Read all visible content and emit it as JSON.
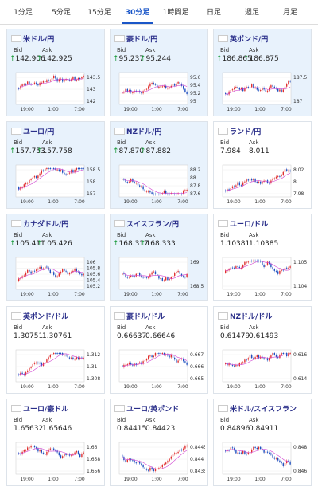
{
  "tabs": [
    "1分足",
    "5分足",
    "15分足",
    "30分足",
    "1時間足",
    "日足",
    "週足",
    "月足"
  ],
  "active_tab": 3,
  "labels": {
    "bid": "Bid",
    "ask": "Ask"
  },
  "time_labels": [
    "19:00",
    "1:00",
    "7:00"
  ],
  "cards": [
    {
      "name": "米ドル/円",
      "bid": "142.906",
      "ask": "142.925",
      "up": true,
      "highlight": true,
      "ticks": [
        "143.5",
        "143",
        "142"
      ]
    },
    {
      "name": "豪ドル/円",
      "bid": "95.237",
      "ask": "95.244",
      "up": true,
      "highlight": true,
      "ticks": [
        "95.6",
        "95.4",
        "95.2",
        "95"
      ]
    },
    {
      "name": "英ポンド/円",
      "bid": "186.865",
      "ask": "186.875",
      "up": true,
      "highlight": true,
      "ticks": [
        "187.5",
        "187"
      ]
    },
    {
      "name": "ユーロ/円",
      "bid": "157.753",
      "ask": "157.758",
      "up": true,
      "highlight": true,
      "ticks": [
        "158.5",
        "158",
        "157"
      ]
    },
    {
      "name": "NZドル/円",
      "bid": "87.870",
      "ask": "87.882",
      "up": true,
      "highlight": true,
      "ticks": [
        "88.2",
        "88",
        "87.8",
        "87.6"
      ]
    },
    {
      "name": "ランド/円",
      "bid": "7.984",
      "ask": "8.011",
      "up": false,
      "highlight": false,
      "ticks": [
        "8.02",
        "8",
        "7.98"
      ]
    },
    {
      "name": "カナダドル/円",
      "bid": "105.411",
      "ask": "105.426",
      "up": true,
      "highlight": true,
      "ticks": [
        "106",
        "105.8",
        "105.6",
        "105.4",
        "105.2"
      ]
    },
    {
      "name": "スイスフラン/円",
      "bid": "168.317",
      "ask": "168.333",
      "up": true,
      "highlight": true,
      "ticks": [
        "169",
        "168.5"
      ]
    },
    {
      "name": "ユーロ/ドル",
      "bid": "1.10381",
      "ask": "1.10385",
      "up": false,
      "highlight": false,
      "ticks": [
        "1.105",
        "1.104"
      ]
    },
    {
      "name": "英ポンド/ドル",
      "bid": "1.30751",
      "ask": "1.30761",
      "up": false,
      "highlight": false,
      "ticks": [
        "1.312",
        "1.31",
        "1.308"
      ]
    },
    {
      "name": "豪ドル/ドル",
      "bid": "0.66637",
      "ask": "0.66646",
      "up": false,
      "highlight": false,
      "ticks": [
        "0.667",
        "0.666",
        "0.665"
      ]
    },
    {
      "name": "NZドル/ドル",
      "bid": "0.61479",
      "ask": "0.61493",
      "up": false,
      "highlight": false,
      "ticks": [
        "0.616",
        "0.614"
      ]
    },
    {
      "name": "ユーロ/豪ドル",
      "bid": "1.65632",
      "ask": "1.65646",
      "up": false,
      "highlight": false,
      "ticks": [
        "1.66",
        "1.658",
        "1.656"
      ]
    },
    {
      "name": "ユーロ/英ポンド",
      "bid": "0.84415",
      "ask": "0.84423",
      "up": false,
      "highlight": false,
      "ticks": [
        "0.8445",
        "0.844",
        "0.8435"
      ]
    },
    {
      "name": "米ドル/スイスフラン",
      "bid": "0.84896",
      "ask": "0.84911",
      "up": false,
      "highlight": false,
      "ticks": [
        "0.848",
        "0.846"
      ]
    }
  ]
}
